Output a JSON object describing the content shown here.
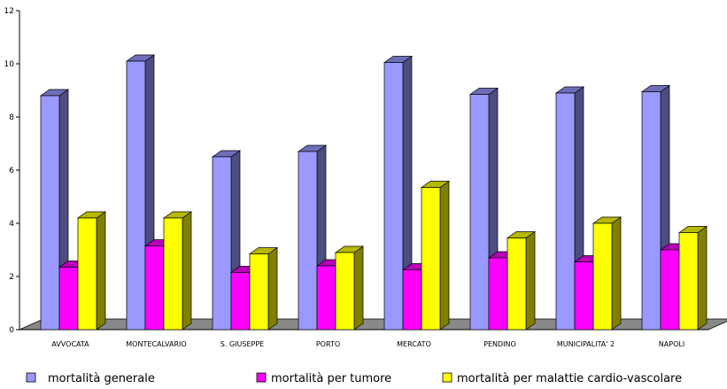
{
  "chart_data": {
    "type": "bar",
    "style": "3d-clustered-column",
    "categories": [
      "AVVOCATA",
      "MONTECALVARIO",
      "S. GIUSEPPE",
      "PORTO",
      "MERCATO",
      "PENDINO",
      "MUNICIPALITA' 2",
      "NAPOLI"
    ],
    "series": [
      {
        "name": "mortalità generale",
        "color": "#9999ff",
        "values": [
          8.8,
          10.1,
          6.5,
          6.7,
          10.05,
          8.85,
          8.9,
          8.95
        ]
      },
      {
        "name": "mortalità per tumore",
        "color": "#ff00ff",
        "values": [
          2.35,
          3.15,
          2.15,
          2.4,
          2.25,
          2.7,
          2.55,
          3.0
        ]
      },
      {
        "name": "mortalità per malattie cardio-vascolare",
        "color": "#ffff00",
        "values": [
          4.2,
          4.2,
          2.85,
          2.9,
          5.35,
          3.45,
          4.0,
          3.65
        ]
      }
    ],
    "ylim": [
      0,
      12
    ],
    "yticks": [
      0,
      2,
      4,
      6,
      8,
      10,
      12
    ],
    "grid": false,
    "legend_position": "bottom",
    "title": "",
    "xlabel": "",
    "ylabel": ""
  }
}
